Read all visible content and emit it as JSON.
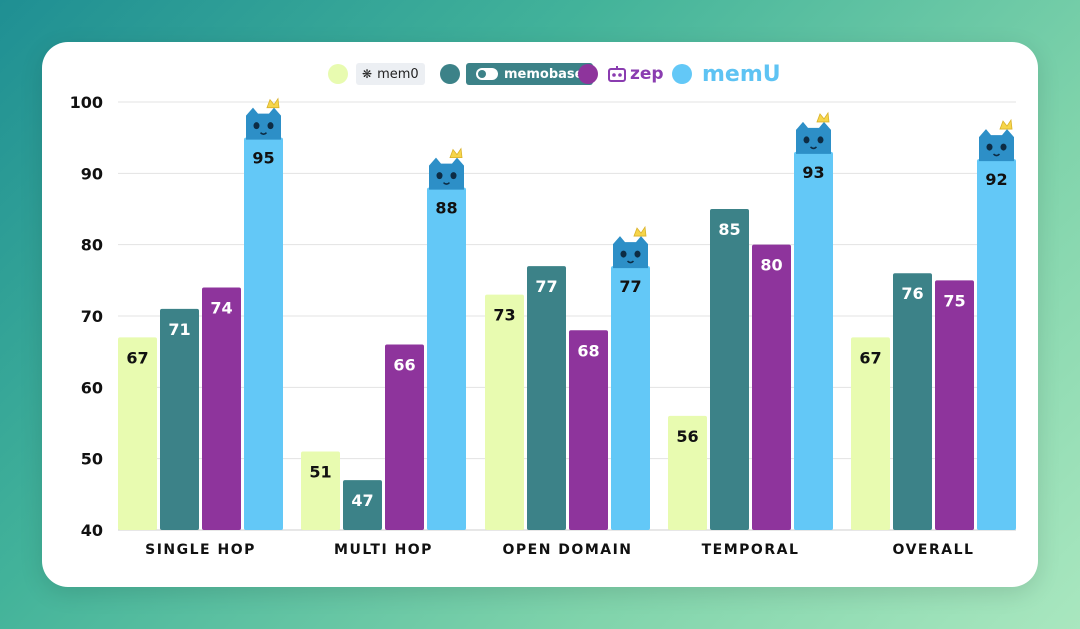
{
  "chart_data": {
    "type": "bar",
    "title": "",
    "xlabel": "",
    "ylabel": "",
    "ylim": [
      40,
      100
    ],
    "yticks": [
      40,
      50,
      60,
      70,
      80,
      90,
      100
    ],
    "grid": true,
    "legend_position": "top-center",
    "categories": [
      "SINGLE HOP",
      "MULTI HOP",
      "OPEN DOMAIN",
      "TEMPORAL",
      "OVERALL"
    ],
    "series": [
      {
        "name": "mem0",
        "color": "#e8fbb0",
        "values": [
          67,
          51,
          73,
          56,
          67
        ]
      },
      {
        "name": "memobase",
        "color": "#3c8288",
        "values": [
          71,
          47,
          77,
          85,
          76
        ]
      },
      {
        "name": "zep",
        "color": "#8e349c",
        "values": [
          74,
          66,
          68,
          80,
          75
        ]
      },
      {
        "name": "memU",
        "color": "#63c8f7",
        "values": [
          95,
          88,
          77,
          93,
          92
        ]
      }
    ],
    "winner_badge_series": "memU",
    "winner_badge_icon": "crowned-cat-icon"
  },
  "legend": {
    "mem0_icon": "❋",
    "memobase_icon": "toggle-icon",
    "zep_icon": "robot-icon"
  }
}
